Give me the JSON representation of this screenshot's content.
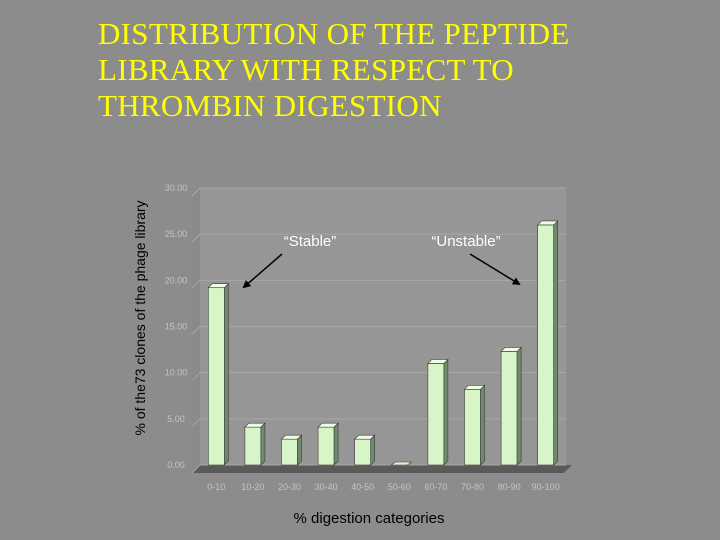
{
  "title_lines": [
    "DISTRIBUTION OF THE PEPTIDE",
    "LIBRARY WITH RESPECT TO",
    "THROMBIN DIGESTION"
  ],
  "colors": {
    "background": "#8c8c8c",
    "title": "#ffff00",
    "bar_face": "#d8f5c8",
    "bar_side": "#6f8a6f",
    "plot_wall": "#969696",
    "plot_floor": "#5a5a5a",
    "annotation_text": "#ffffff"
  },
  "chart_data": {
    "type": "bar",
    "title": "DISTRIBUTION OF THE PEPTIDE LIBRARY WITH RESPECT TO THROMBIN DIGESTION",
    "xlabel": "% digestion categories",
    "ylabel": "% of the73 clones of the phage library",
    "categories": [
      "0-10",
      "10-20",
      "20-30",
      "30-40",
      "40-50",
      "50-60",
      "60-70",
      "70-80",
      "80-90",
      "90-100"
    ],
    "values": [
      19.2,
      4.1,
      2.8,
      4.1,
      2.8,
      0.0,
      11.0,
      8.2,
      12.3,
      26.0
    ],
    "ytick_labels": [
      "0.00",
      "5.00",
      "10.00",
      "15.00",
      "20.00",
      "25.00",
      "30.00"
    ],
    "ylim": [
      0,
      30
    ],
    "grid": true,
    "legend": "none",
    "annotations": [
      {
        "text": "“Stable”",
        "points_to": "0-10"
      },
      {
        "text": "“Unstable”",
        "points_to": "90-100"
      }
    ]
  }
}
